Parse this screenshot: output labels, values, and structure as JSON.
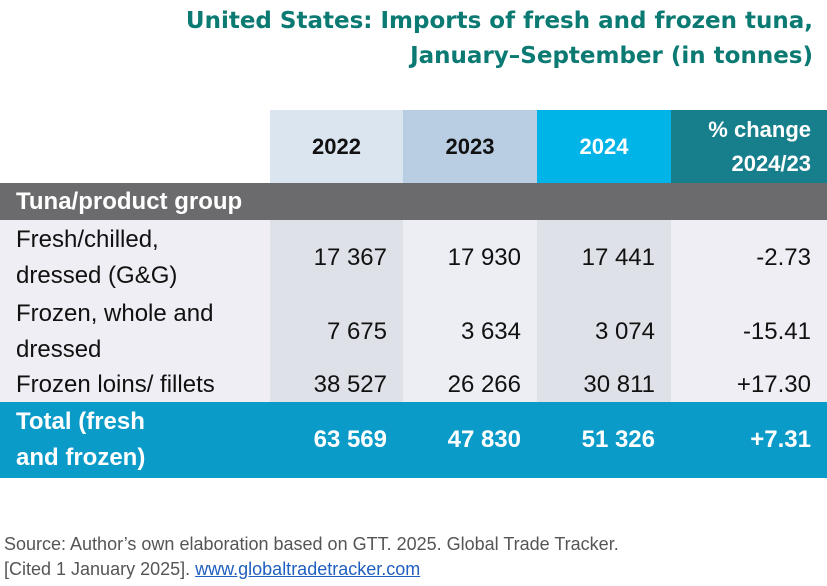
{
  "title": {
    "lines": [
      "United States: Imports of fresh and frozen tuna,",
      "January–September (in tonnes)"
    ]
  },
  "table": {
    "headers": [
      [
        "2022"
      ],
      [
        "2023"
      ],
      [
        "2024"
      ],
      [
        "% change",
        "2024/23"
      ]
    ],
    "group_label": "Tuna/product group",
    "rows": [
      {
        "label": [
          "Fresh/chilled,",
          "dressed (G&G)"
        ],
        "cells": [
          "17 367",
          "17 930",
          "17 441",
          "-2.73"
        ]
      },
      {
        "label": [
          "Frozen, whole and",
          "dressed"
        ],
        "cells": [
          "7 675",
          "3 634",
          "3 074",
          "-15.41"
        ]
      },
      {
        "label": [
          "Frozen loins/ fillets"
        ],
        "cells": [
          "38 527",
          "26 266",
          "30 811",
          "+17.30"
        ]
      }
    ],
    "total": {
      "label": [
        "Total (fresh",
        "and frozen)"
      ],
      "cells": [
        "63 569",
        "47 830",
        "51 326",
        "+7.31"
      ]
    }
  },
  "source": {
    "lines": [
      "Source: Author’s own elaboration based on GTT. 2025. Global Trade Tracker.",
      "[Cited 1 January 2025]."
    ],
    "link": "www.globaltradetracker.com"
  }
}
